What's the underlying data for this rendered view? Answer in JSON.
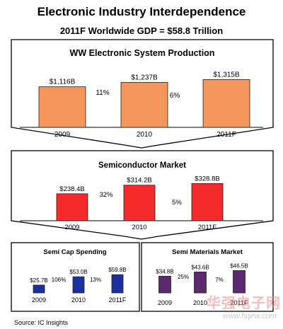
{
  "header": {
    "title": "Electronic Industry Interdependence",
    "subtitle": "2011F Worldwide GDP = $58.8 Trillion"
  },
  "chart_data": [
    {
      "type": "bar",
      "title": "WW Electronic System Production",
      "categories": [
        "2009",
        "2010",
        "2011F"
      ],
      "values": [
        1116,
        1237,
        1315
      ],
      "value_labels": [
        "$1,116B",
        "$1,237B",
        "$1,315B"
      ],
      "growth_labels": [
        "11%",
        "6%"
      ],
      "color": "#f4955c",
      "ylim": [
        0,
        1400
      ]
    },
    {
      "type": "bar",
      "title": "Semiconductor Market",
      "categories": [
        "2009",
        "2010",
        "2011F"
      ],
      "values": [
        238.4,
        314.2,
        328.8
      ],
      "value_labels": [
        "$238.4B",
        "$314.2B",
        "$328.8B"
      ],
      "growth_labels": [
        "32%",
        "5%"
      ],
      "color": "#f52a2a",
      "ylim": [
        0,
        350
      ]
    },
    {
      "type": "bar",
      "title": "Semi Cap Spending",
      "categories": [
        "2009",
        "2010",
        "2011F"
      ],
      "values": [
        25.7,
        53.0,
        59.8
      ],
      "value_labels": [
        "$25.7B",
        "$53.0B",
        "$59.8B"
      ],
      "growth_labels": [
        "106%",
        "13%"
      ],
      "color": "#1c2f9e",
      "ylim": [
        0,
        65
      ]
    },
    {
      "type": "bar",
      "title": "Semi Materials Market",
      "categories": [
        "2009",
        "2010",
        "2011F"
      ],
      "values": [
        34.8,
        43.6,
        46.5
      ],
      "value_labels": [
        "$34.8B",
        "$43.6B",
        "$46.5B"
      ],
      "growth_labels": [
        "25%",
        "7%"
      ],
      "color": "#5b2a6e",
      "ylim": [
        0,
        50
      ]
    }
  ],
  "footer": {
    "source": "Source:  IC Insights"
  },
  "watermark": {
    "text_cn": "华强电子网",
    "url": "www.hqew.com"
  }
}
